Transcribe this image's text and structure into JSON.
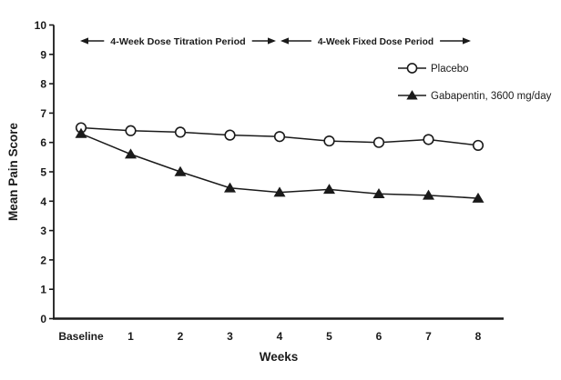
{
  "figure": {
    "background_color": "#ffffff",
    "ink_color": "#1a1a1a"
  },
  "chart_data": {
    "type": "line",
    "title": "",
    "xlabel": "Weeks",
    "ylabel": "Mean Pain Score",
    "x_categories": [
      "Baseline",
      "1",
      "2",
      "3",
      "4",
      "5",
      "6",
      "7",
      "8"
    ],
    "ylim": [
      0,
      10
    ],
    "y_ticks": [
      0,
      1,
      2,
      3,
      4,
      5,
      6,
      7,
      8,
      9,
      10
    ],
    "grid": false,
    "legend_position": "upper right",
    "series": [
      {
        "name": "Placebo",
        "marker": "open-circle",
        "values": [
          6.5,
          6.4,
          6.35,
          6.25,
          6.2,
          6.05,
          6.0,
          6.1,
          5.9
        ]
      },
      {
        "name": "Gabapentin, 3600 mg/day",
        "marker": "filled-triangle",
        "values": [
          6.3,
          5.6,
          5.0,
          4.45,
          4.3,
          4.4,
          4.25,
          4.2,
          4.1
        ]
      }
    ],
    "annotations": [
      {
        "label": "4-Week Dose Titration Period",
        "x_start": "Baseline",
        "x_end": "4",
        "arrow": "double-headed"
      },
      {
        "label": "4-Week Fixed Dose Period",
        "x_start": "4",
        "x_end": "8",
        "arrow": "double-headed"
      }
    ]
  }
}
